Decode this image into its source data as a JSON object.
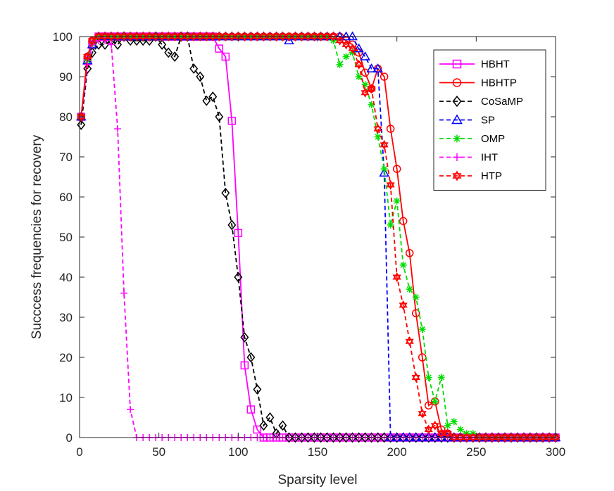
{
  "chart_data": {
    "type": "line",
    "xlabel": "Sparsity  level",
    "ylabel": "Succcess  frequencies  for  recovery",
    "xlim": [
      0,
      300
    ],
    "ylim": [
      0,
      100
    ],
    "xticks": [
      0,
      50,
      100,
      150,
      200,
      250,
      300
    ],
    "yticks": [
      0,
      10,
      20,
      30,
      40,
      50,
      60,
      70,
      80,
      90,
      100
    ],
    "grid": false,
    "legend_position": "top-right",
    "series": [
      {
        "name": "HBHT",
        "color": "#ff00ff",
        "line": "solid",
        "marker": "square",
        "x": [
          1,
          5,
          8,
          12,
          16,
          20,
          24,
          28,
          32,
          36,
          40,
          44,
          48,
          52,
          56,
          60,
          64,
          68,
          72,
          76,
          80,
          84,
          88,
          92,
          96,
          100,
          104,
          108,
          112,
          116,
          120,
          124,
          128,
          132,
          136,
          140,
          144,
          148,
          152,
          156,
          160,
          164,
          168,
          172,
          176,
          180,
          184,
          188,
          192,
          196,
          200,
          204,
          208,
          212,
          216,
          220,
          224,
          228,
          232,
          236,
          240,
          244,
          248,
          252,
          256,
          260,
          264,
          268,
          272,
          276,
          280,
          284,
          288,
          292,
          296,
          300
        ],
        "y": [
          80,
          94,
          98,
          100,
          100,
          100,
          100,
          100,
          100,
          100,
          100,
          100,
          100,
          100,
          100,
          100,
          100,
          100,
          100,
          100,
          100,
          100,
          97,
          95,
          79,
          51,
          18,
          7,
          2,
          0,
          0,
          0,
          0,
          0,
          0,
          0,
          0,
          0,
          0,
          0,
          0,
          0,
          0,
          0,
          0,
          0,
          0,
          0,
          0,
          0,
          0,
          0,
          0,
          0,
          0,
          0,
          0,
          0,
          0,
          0,
          0,
          0,
          0,
          0,
          0,
          0,
          0,
          0,
          0,
          0,
          0,
          0,
          0,
          0,
          0,
          0
        ]
      },
      {
        "name": "HBHTP",
        "color": "#ff0000",
        "line": "solid",
        "marker": "circle",
        "x": [
          1,
          5,
          8,
          12,
          16,
          20,
          24,
          28,
          32,
          36,
          40,
          44,
          48,
          52,
          56,
          60,
          64,
          68,
          72,
          76,
          80,
          84,
          88,
          92,
          96,
          100,
          104,
          108,
          112,
          116,
          120,
          124,
          128,
          132,
          136,
          140,
          144,
          148,
          152,
          156,
          160,
          164,
          168,
          172,
          176,
          180,
          184,
          188,
          192,
          196,
          200,
          204,
          208,
          212,
          216,
          220,
          224,
          228,
          232,
          236,
          240,
          244,
          248,
          252,
          256,
          260,
          264,
          268,
          272,
          276,
          280,
          284,
          288,
          292,
          296,
          300
        ],
        "y": [
          80,
          95,
          99,
          100,
          100,
          100,
          100,
          100,
          100,
          100,
          100,
          100,
          100,
          100,
          100,
          100,
          100,
          100,
          100,
          100,
          100,
          100,
          100,
          100,
          100,
          100,
          100,
          100,
          100,
          100,
          100,
          100,
          100,
          100,
          100,
          100,
          100,
          100,
          100,
          100,
          100,
          100,
          99,
          98,
          96,
          91,
          87,
          92,
          90,
          77,
          67,
          54,
          46,
          31,
          20,
          8,
          9,
          2,
          1,
          0,
          0,
          0,
          0,
          0,
          0,
          0,
          0,
          0,
          0,
          0,
          0,
          0,
          0,
          0,
          0,
          0
        ]
      },
      {
        "name": "CoSaMP",
        "color": "#000000",
        "line": "dashed",
        "marker": "diamond",
        "x": [
          1,
          5,
          8,
          12,
          16,
          20,
          24,
          28,
          32,
          36,
          40,
          44,
          48,
          52,
          56,
          60,
          64,
          68,
          72,
          76,
          80,
          84,
          88,
          92,
          96,
          100,
          104,
          108,
          112,
          116,
          120,
          124,
          128,
          132,
          136,
          140,
          144,
          148,
          152,
          156,
          160,
          164,
          168,
          172,
          176,
          180,
          184,
          188,
          192,
          196,
          200,
          204,
          208,
          212,
          216,
          220,
          224,
          228,
          232,
          236,
          240,
          244,
          248,
          252,
          256,
          260,
          264,
          268,
          272,
          276,
          280,
          284,
          288,
          292,
          296,
          300
        ],
        "y": [
          78,
          92,
          96,
          98,
          98,
          99,
          98,
          100,
          99,
          99,
          99,
          99,
          100,
          98,
          96,
          95,
          100,
          100,
          92,
          90,
          84,
          85,
          80,
          61,
          53,
          40,
          25,
          20,
          12,
          3,
          5,
          1,
          3,
          0,
          0,
          0,
          0,
          0,
          0,
          0,
          0,
          0,
          0,
          0,
          0,
          0,
          0,
          0,
          0,
          0,
          0,
          0,
          0,
          0,
          0,
          0,
          0,
          0,
          0,
          0,
          0,
          0,
          0,
          0,
          0,
          0,
          0,
          0,
          0,
          0,
          0,
          0,
          0,
          0,
          0,
          0
        ]
      },
      {
        "name": "SP",
        "color": "#0000ff",
        "line": "dashed",
        "marker": "triangle",
        "x": [
          1,
          5,
          8,
          12,
          16,
          20,
          24,
          28,
          32,
          36,
          40,
          44,
          48,
          52,
          56,
          60,
          64,
          68,
          72,
          76,
          80,
          84,
          88,
          92,
          96,
          100,
          104,
          108,
          112,
          116,
          120,
          124,
          128,
          132,
          136,
          140,
          144,
          148,
          152,
          156,
          160,
          164,
          168,
          172,
          176,
          180,
          184,
          188,
          192,
          196,
          200,
          204,
          208,
          212,
          216,
          220,
          224,
          228,
          232,
          236,
          240,
          244,
          248,
          252,
          256,
          260,
          264,
          268,
          272,
          276,
          280,
          284,
          288,
          292,
          296,
          300
        ],
        "y": [
          80,
          94,
          98,
          100,
          100,
          100,
          100,
          100,
          100,
          100,
          100,
          100,
          100,
          100,
          100,
          100,
          100,
          100,
          100,
          100,
          100,
          100,
          100,
          100,
          100,
          100,
          100,
          100,
          100,
          100,
          100,
          100,
          100,
          99,
          100,
          100,
          100,
          100,
          100,
          100,
          100,
          100,
          100,
          100,
          97,
          95,
          92,
          92,
          66,
          0,
          0,
          0,
          0,
          0,
          0,
          0,
          0,
          0,
          0,
          0,
          0,
          0,
          0,
          0,
          0,
          0,
          0,
          0,
          0,
          0,
          0,
          0,
          0,
          0,
          0,
          0
        ]
      },
      {
        "name": "OMP",
        "color": "#00dd00",
        "line": "dashed",
        "marker": "asterisk",
        "x": [
          1,
          5,
          8,
          12,
          16,
          20,
          24,
          28,
          32,
          36,
          40,
          44,
          48,
          52,
          56,
          60,
          64,
          68,
          72,
          76,
          80,
          84,
          88,
          92,
          96,
          100,
          104,
          108,
          112,
          116,
          120,
          124,
          128,
          132,
          136,
          140,
          144,
          148,
          152,
          156,
          160,
          164,
          168,
          172,
          176,
          180,
          184,
          188,
          192,
          196,
          200,
          204,
          208,
          212,
          216,
          220,
          224,
          228,
          232,
          236,
          240,
          244,
          248,
          252,
          256,
          260,
          264,
          268,
          272,
          276,
          280,
          284,
          288,
          292,
          296,
          300
        ],
        "y": [
          80,
          94,
          98,
          100,
          100,
          100,
          100,
          100,
          100,
          100,
          100,
          100,
          100,
          100,
          100,
          100,
          100,
          100,
          100,
          100,
          100,
          100,
          100,
          100,
          100,
          100,
          100,
          100,
          100,
          100,
          100,
          100,
          100,
          100,
          100,
          100,
          100,
          100,
          100,
          100,
          99,
          93,
          95,
          96,
          90,
          88,
          83,
          75,
          67,
          53,
          59,
          43,
          37,
          35,
          27,
          15,
          9,
          15,
          3,
          4,
          2,
          1,
          1,
          0,
          0,
          0,
          0,
          0,
          0,
          0,
          0,
          0,
          0,
          0,
          0,
          0
        ]
      },
      {
        "name": "IHT",
        "color": "#ff00ff",
        "line": "dashed",
        "marker": "plus",
        "x": [
          1,
          5,
          8,
          12,
          16,
          20,
          24,
          28,
          32,
          36,
          40,
          44,
          48,
          52,
          56,
          60,
          64,
          68,
          72,
          76,
          80,
          84,
          88,
          92,
          96,
          100,
          104,
          108,
          112,
          116,
          120,
          124,
          128,
          132,
          136,
          140,
          144,
          148,
          152,
          156,
          160,
          164,
          168,
          172,
          176,
          180,
          184,
          188,
          192,
          196,
          200,
          204,
          208,
          212,
          216,
          220,
          224,
          228,
          232,
          236,
          240,
          244,
          248,
          252,
          256,
          260,
          264,
          268,
          272,
          276,
          280,
          284,
          288,
          292,
          296,
          300
        ],
        "y": [
          80,
          93,
          98,
          99,
          99,
          98,
          77,
          36,
          7,
          0,
          0,
          0,
          0,
          0,
          0,
          0,
          0,
          0,
          0,
          0,
          0,
          0,
          0,
          0,
          0,
          0,
          0,
          0,
          0,
          0,
          0,
          0,
          0,
          0,
          0,
          0,
          0,
          0,
          0,
          0,
          0,
          0,
          0,
          0,
          0,
          0,
          0,
          0,
          0,
          0,
          0,
          0,
          0,
          0,
          0,
          0,
          0,
          0,
          0,
          0,
          0,
          0,
          0,
          0,
          0,
          0,
          0,
          0,
          0,
          0,
          0,
          0,
          0,
          0,
          0,
          0
        ]
      },
      {
        "name": "HTP",
        "color": "#ff0000",
        "line": "dashed",
        "marker": "hexagram",
        "x": [
          1,
          5,
          8,
          12,
          16,
          20,
          24,
          28,
          32,
          36,
          40,
          44,
          48,
          52,
          56,
          60,
          64,
          68,
          72,
          76,
          80,
          84,
          88,
          92,
          96,
          100,
          104,
          108,
          112,
          116,
          120,
          124,
          128,
          132,
          136,
          140,
          144,
          148,
          152,
          156,
          160,
          164,
          168,
          172,
          176,
          180,
          184,
          188,
          192,
          196,
          200,
          204,
          208,
          212,
          216,
          220,
          224,
          228,
          232,
          236,
          240,
          244,
          248,
          252,
          256,
          260,
          264,
          268,
          272,
          276,
          280,
          284,
          288,
          292,
          296,
          300
        ],
        "y": [
          80,
          95,
          99,
          100,
          100,
          100,
          100,
          100,
          100,
          100,
          100,
          100,
          100,
          100,
          100,
          100,
          100,
          100,
          100,
          100,
          100,
          100,
          100,
          100,
          100,
          100,
          100,
          100,
          100,
          100,
          100,
          100,
          100,
          100,
          100,
          100,
          100,
          100,
          100,
          100,
          100,
          99,
          98,
          97,
          93,
          86,
          87,
          77,
          73,
          63,
          40,
          33,
          24,
          15,
          6,
          2,
          3,
          1,
          1,
          0,
          0,
          0,
          0,
          0,
          0,
          0,
          0,
          0,
          0,
          0,
          0,
          0,
          0,
          0,
          0,
          0
        ]
      }
    ]
  }
}
